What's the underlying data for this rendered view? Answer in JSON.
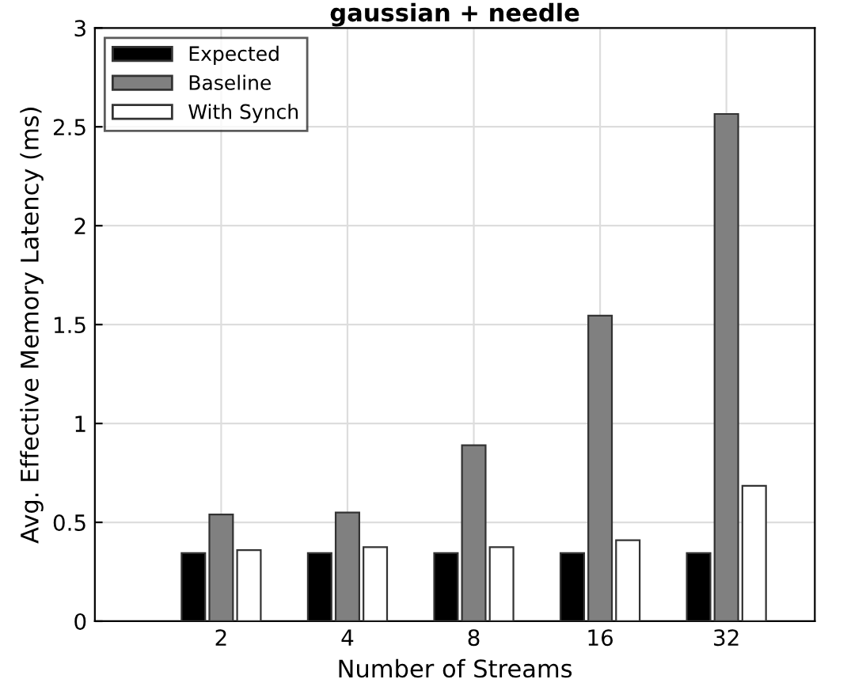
{
  "chart_data": {
    "type": "bar",
    "title": "gaussian + needle",
    "xlabel": "Number of Streams",
    "ylabel": "Avg. Effective Memory Latency (ms)",
    "categories": [
      "2",
      "4",
      "8",
      "16",
      "32"
    ],
    "series": [
      {
        "name": "Expected",
        "color": "#000000",
        "values": [
          0.345,
          0.345,
          0.345,
          0.345,
          0.345
        ]
      },
      {
        "name": "Baseline",
        "color": "#808080",
        "values": [
          0.54,
          0.55,
          0.89,
          1.545,
          2.565
        ]
      },
      {
        "name": "With Synch",
        "color": "#ffffff",
        "values": [
          0.36,
          0.375,
          0.375,
          0.41,
          0.685
        ]
      }
    ],
    "ylim": [
      0,
      3
    ],
    "yticks": [
      0,
      0.5,
      1,
      1.5,
      2,
      2.5,
      3
    ],
    "grid": true,
    "legend": "top left"
  }
}
